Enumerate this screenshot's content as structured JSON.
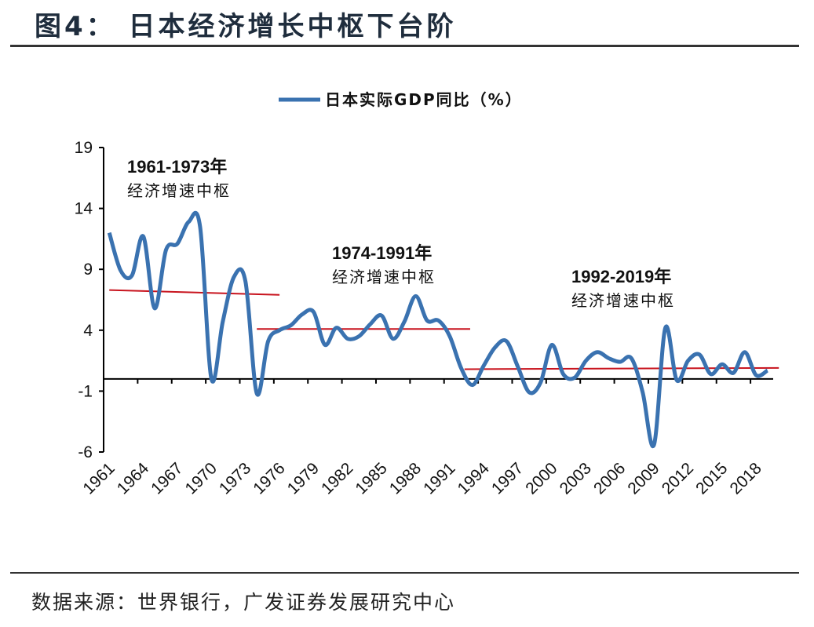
{
  "header": {
    "title": "图4：  日本经济增长中枢下台阶"
  },
  "footer": {
    "source": "数据来源：世界银行，广发证券发展研究中心"
  },
  "chart_data": {
    "type": "line",
    "title": "",
    "xlabel": "",
    "ylabel": "",
    "ylim": [
      -6,
      19
    ],
    "yticks": [
      -6,
      -1,
      4,
      9,
      14,
      19
    ],
    "xtick_labels": [
      "1961",
      "1964",
      "1967",
      "1970",
      "1973",
      "1976",
      "1979",
      "1982",
      "1985",
      "1988",
      "1991",
      "1994",
      "1997",
      "2000",
      "2003",
      "2006",
      "2009",
      "2012",
      "2015",
      "2018"
    ],
    "legend_position": "top-center",
    "grid": false,
    "colors": {
      "series": "#3a72b0",
      "average": "#c8141e",
      "axis": "#000000"
    },
    "x": [
      1961,
      1962,
      1963,
      1964,
      1965,
      1966,
      1967,
      1968,
      1969,
      1970,
      1971,
      1972,
      1973,
      1974,
      1975,
      1976,
      1977,
      1978,
      1979,
      1980,
      1981,
      1982,
      1983,
      1984,
      1985,
      1986,
      1987,
      1988,
      1989,
      1990,
      1991,
      1992,
      1993,
      1994,
      1995,
      1996,
      1997,
      1998,
      1999,
      2000,
      2001,
      2002,
      2003,
      2004,
      2005,
      2006,
      2007,
      2008,
      2009,
      2010,
      2011,
      2012,
      2013,
      2014,
      2015,
      2016,
      2017,
      2018,
      2019
    ],
    "series": [
      {
        "name": "日本实际GDP同比（%）",
        "values": [
          12.0,
          8.9,
          8.5,
          11.7,
          5.8,
          10.6,
          11.1,
          12.9,
          12.5,
          0.0,
          4.7,
          8.4,
          8.0,
          -1.2,
          3.1,
          4.0,
          4.4,
          5.3,
          5.5,
          2.8,
          4.2,
          3.3,
          3.5,
          4.5,
          5.2,
          3.3,
          4.7,
          6.8,
          4.8,
          4.8,
          3.5,
          0.9,
          -0.5,
          1.1,
          2.6,
          3.1,
          1.0,
          -1.1,
          -0.3,
          2.8,
          0.4,
          0.1,
          1.5,
          2.2,
          1.7,
          1.4,
          1.7,
          -1.1,
          -5.4,
          4.2,
          -0.1,
          1.5,
          2.0,
          0.4,
          1.2,
          0.5,
          2.2,
          0.3,
          0.7
        ]
      }
    ],
    "averages": [
      {
        "x_range": [
          1961,
          1976
        ],
        "values": [
          7.3,
          6.9
        ]
      },
      {
        "x_range": [
          1974,
          1992.8
        ],
        "values": [
          4.1,
          4.1
        ]
      },
      {
        "x_range": [
          1992.3,
          2020
        ],
        "values": [
          0.8,
          0.9
        ]
      }
    ],
    "annotations": [
      {
        "line1": "1961-1973年",
        "line2": "经济增速中枢"
      },
      {
        "line1": "1974-1991年",
        "line2": "经济增速中枢"
      },
      {
        "line1": "1992-2019年",
        "line2": "经济增速中枢"
      }
    ]
  }
}
